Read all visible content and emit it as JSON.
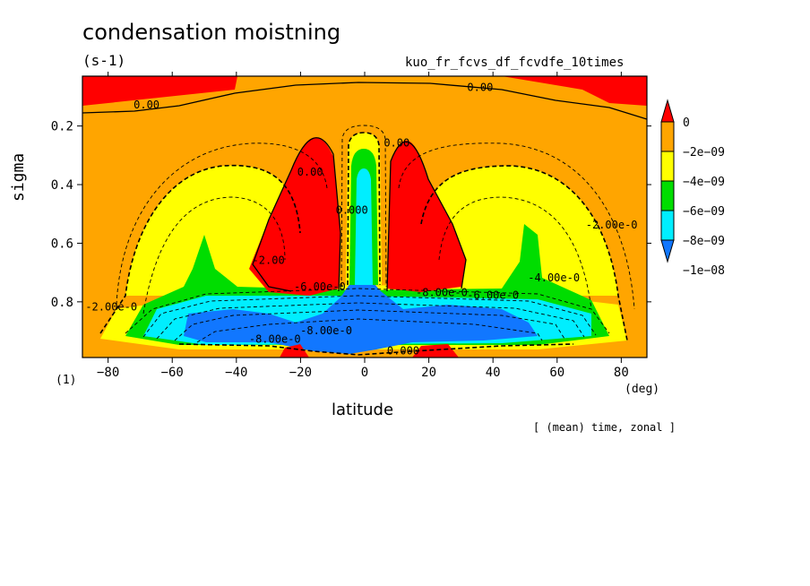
{
  "chart_data": {
    "type": "heatmap",
    "title": "condensation moistning",
    "units": "(s-1)",
    "run_label": "kuo_fr_fcvs_df_fcvdfe_10times",
    "xlabel": "latitude",
    "x_unit": "(deg)",
    "ylabel": "sigma",
    "y_unit": "(1)",
    "footnote": "[ (mean) time, zonal ]",
    "xlim": [
      -88,
      88
    ],
    "ylim": [
      0.99,
      0.03
    ],
    "x_ticks": [
      -80,
      -60,
      -40,
      -20,
      0,
      20,
      40,
      60,
      80
    ],
    "x_tick_labels": [
      "−80",
      "−60",
      "−40",
      "−20",
      "0",
      "20",
      "40",
      "60",
      "80"
    ],
    "y_ticks": [
      0.2,
      0.4,
      0.6,
      0.8
    ],
    "y_tick_labels": [
      "0.2",
      "0.4",
      "0.6",
      "0.8"
    ],
    "colorbar": {
      "labels": [
        "0",
        "−2e−09",
        "−4e−09",
        "−6e−09",
        "−8e−09",
        "−1e−08"
      ],
      "colors": [
        "#ff0000",
        "#ffa500",
        "#ffff00",
        "#00dd00",
        "#00eeff",
        "#1177ff"
      ]
    },
    "contour_labels": [
      {
        "text": "0.00",
        "lat": -68,
        "sigma": 0.14
      },
      {
        "text": "0.00",
        "lat": 36,
        "sigma": 0.08
      },
      {
        "text": "0.00",
        "lat": -17,
        "sigma": 0.37
      },
      {
        "text": "0.00",
        "lat": 10,
        "sigma": 0.27
      },
      {
        "text": "-2.00e-0",
        "lat": -79,
        "sigma": 0.83
      },
      {
        "text": "-2.00e-0",
        "lat": 77,
        "sigma": 0.55
      },
      {
        "text": "-4.00e-0",
        "lat": 59,
        "sigma": 0.73
      },
      {
        "text": "-6.00e-0",
        "lat": 40,
        "sigma": 0.79
      },
      {
        "text": "-8.00e-0",
        "lat": 24,
        "sigma": 0.78
      },
      {
        "text": "-2.00",
        "lat": -30,
        "sigma": 0.67
      },
      {
        "text": "-6.00e-0",
        "lat": -14,
        "sigma": 0.76
      },
      {
        "text": "-8.00e-0",
        "lat": -28,
        "sigma": 0.94
      },
      {
        "text": "-8.00e-0",
        "lat": -12,
        "sigma": 0.91
      },
      {
        "text": "0.000",
        "lat": -4,
        "sigma": 0.5
      },
      {
        "text": "0.000",
        "lat": 12,
        "sigma": 0.98
      }
    ]
  }
}
